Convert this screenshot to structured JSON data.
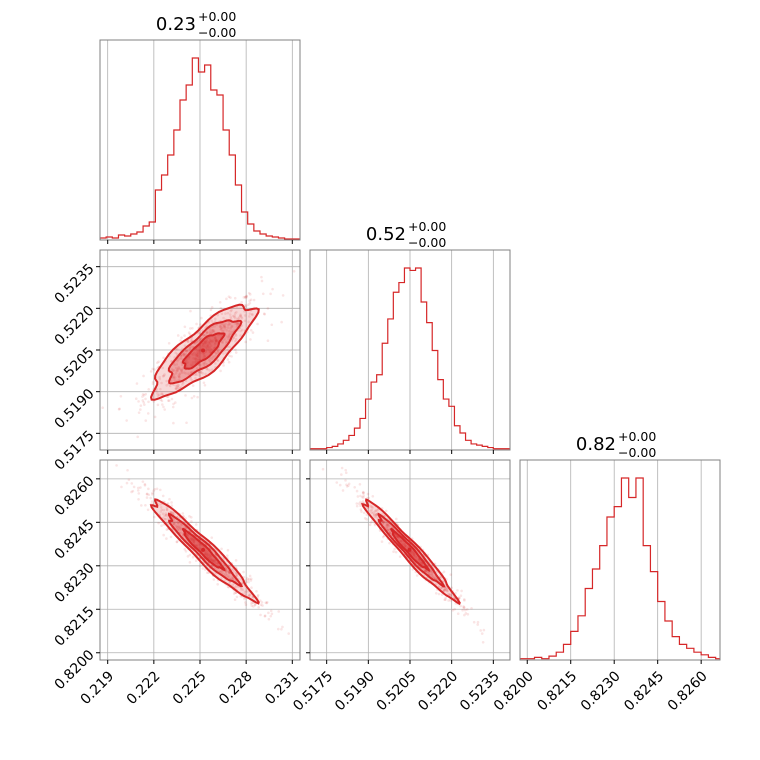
{
  "chart_data": {
    "type": "corner",
    "color": "#d62728",
    "grid": true,
    "parameters": [
      {
        "title_value": "0.23",
        "title_plus": "+0.00",
        "title_minus": "−0.00",
        "range": [
          0.2185,
          0.2315
        ],
        "ticks": [
          0.219,
          0.222,
          0.225,
          0.228,
          0.231
        ],
        "tick_labels": [
          "0.219",
          "0.222",
          "0.225",
          "0.228",
          "0.231"
        ]
      },
      {
        "title_value": "0.52",
        "title_plus": "+0.00",
        "title_minus": "−0.00",
        "range": [
          0.5169,
          0.5241
        ],
        "ticks": [
          0.5175,
          0.519,
          0.5205,
          0.522,
          0.5235
        ],
        "tick_labels": [
          "0.5175",
          "0.5190",
          "0.5205",
          "0.5220",
          "0.5235"
        ]
      },
      {
        "title_value": "0.82",
        "title_plus": "+0.00",
        "title_minus": "−0.00",
        "range": [
          0.81975,
          0.82665
        ],
        "ticks": [
          0.82,
          0.8215,
          0.823,
          0.8245,
          0.826
        ],
        "tick_labels": [
          "0.8200",
          "0.8215",
          "0.8230",
          "0.8245",
          "0.8260"
        ]
      }
    ],
    "histograms": [
      {
        "param": 0,
        "bin_edges": [
          0.2185,
          0.2189,
          0.2193,
          0.2197,
          0.2201,
          0.2205,
          0.2209,
          0.2213,
          0.2217,
          0.2221,
          0.2225,
          0.2229,
          0.2233,
          0.2237,
          0.2241,
          0.2245,
          0.2249,
          0.2253,
          0.2257,
          0.2261,
          0.2265,
          0.2269,
          0.2273,
          0.2277,
          0.2281,
          0.2285,
          0.2289,
          0.2293,
          0.2297,
          0.2301,
          0.2305,
          0.2309,
          0.2315
        ],
        "counts": [
          2,
          3,
          2,
          5,
          4,
          6,
          8,
          14,
          18,
          50,
          65,
          85,
          110,
          140,
          155,
          182,
          168,
          175,
          150,
          145,
          110,
          85,
          55,
          28,
          16,
          9,
          6,
          4,
          3,
          2,
          1,
          1
        ]
      },
      {
        "param": 1,
        "bin_edges": [
          0.5169,
          0.5171,
          0.5173,
          0.5175,
          0.5177,
          0.5179,
          0.5181,
          0.5183,
          0.5185,
          0.5187,
          0.5189,
          0.5191,
          0.5193,
          0.5195,
          0.5197,
          0.5199,
          0.5201,
          0.5203,
          0.5205,
          0.5207,
          0.5209,
          0.5211,
          0.5213,
          0.5215,
          0.5217,
          0.5219,
          0.5221,
          0.5223,
          0.5225,
          0.5227,
          0.5229,
          0.5231,
          0.5233,
          0.5235,
          0.5237,
          0.5241
        ],
        "counts": [
          1,
          1,
          1,
          2,
          3,
          5,
          8,
          12,
          18,
          26,
          42,
          56,
          62,
          88,
          108,
          130,
          138,
          150,
          148,
          150,
          122,
          105,
          82,
          58,
          42,
          36,
          20,
          14,
          8,
          5,
          4,
          3,
          2,
          1,
          1
        ]
      },
      {
        "param": 2,
        "bin_edges": [
          0.81975,
          0.82,
          0.82025,
          0.8205,
          0.82075,
          0.821,
          0.82125,
          0.8215,
          0.82175,
          0.822,
          0.82225,
          0.8225,
          0.82275,
          0.823,
          0.82325,
          0.8235,
          0.82375,
          0.824,
          0.82425,
          0.8245,
          0.82475,
          0.825,
          0.82525,
          0.8255,
          0.82575,
          0.826,
          0.82625,
          0.8265,
          0.82665
        ],
        "counts": [
          1,
          1,
          2,
          1,
          3,
          6,
          12,
          22,
          34,
          55,
          70,
          88,
          110,
          118,
          140,
          125,
          140,
          88,
          68,
          45,
          30,
          18,
          12,
          9,
          6,
          4,
          2,
          1
        ]
      }
    ],
    "pairs": [
      {
        "x_param": 0,
        "y_param": 1,
        "center": [
          0.2252,
          0.52048
        ],
        "sigma": [
          0.0015,
          0.00075
        ],
        "correlation": 0.82
      },
      {
        "x_param": 0,
        "y_param": 2,
        "center": [
          0.2252,
          0.82355
        ],
        "sigma": [
          0.0015,
          0.00078
        ],
        "correlation": -0.96
      },
      {
        "x_param": 1,
        "y_param": 2,
        "center": [
          0.52048,
          0.82355
        ],
        "sigma": [
          0.00075,
          0.00078
        ],
        "correlation": -0.97
      }
    ]
  }
}
